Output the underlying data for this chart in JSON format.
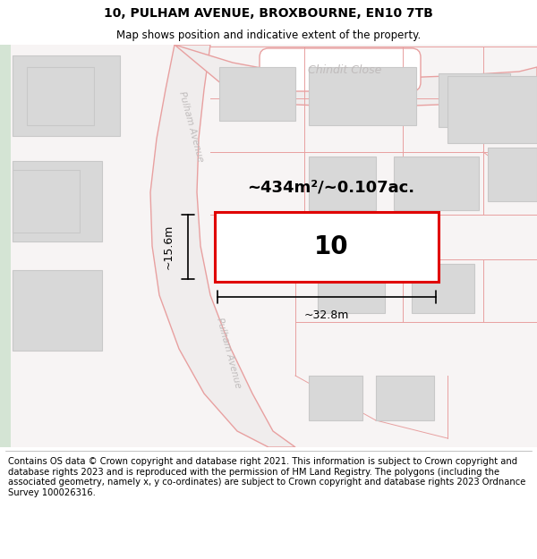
{
  "title": "10, PULHAM AVENUE, BROXBOURNE, EN10 7TB",
  "subtitle": "Map shows position and indicative extent of the property.",
  "footer": "Contains OS data © Crown copyright and database right 2021. This information is subject to Crown copyright and database rights 2023 and is reproduced with the permission of HM Land Registry. The polygons (including the associated geometry, namely x, y co-ordinates) are subject to Crown copyright and database rights 2023 Ordnance Survey 100026316.",
  "area_label": "~434m²/~0.107ac.",
  "plot_label": "10",
  "width_label": "~32.8m",
  "height_label": "~15.6m",
  "road_color": "#e8a0a0",
  "building_fill": "#d8d8d8",
  "building_edge": "#c8c8c8",
  "map_bg": "#f7f4f4",
  "street_label_color": "#c0bcbc",
  "title_fontsize": 10,
  "subtitle_fontsize": 9,
  "footer_fontsize": 7.5,
  "green_strip_color": "#d4e4d4"
}
